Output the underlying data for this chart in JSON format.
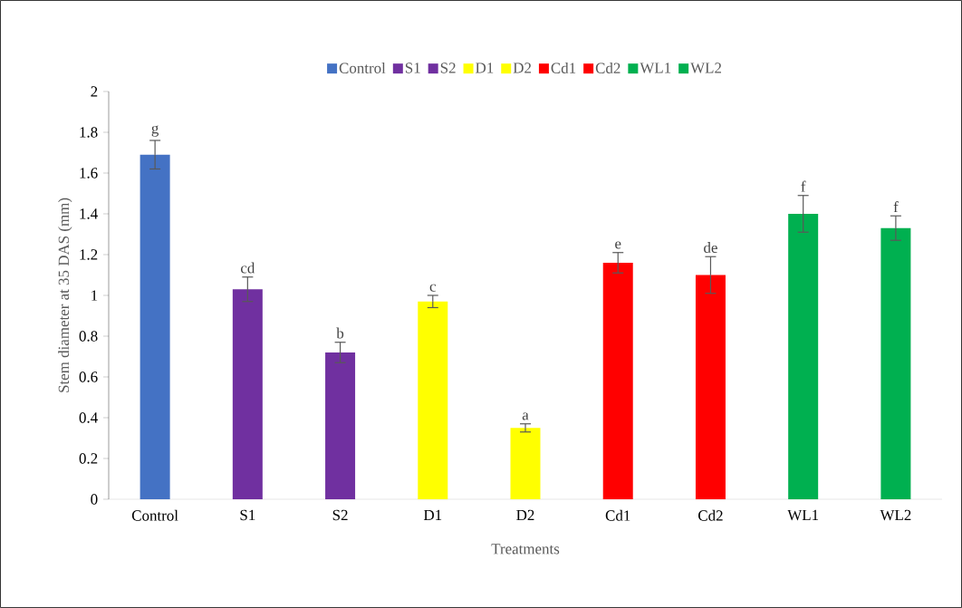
{
  "chart_data": {
    "type": "bar",
    "xlabel": "Treatments",
    "ylabel": "Stem diameter at 35 DAS (mm)",
    "categories": [
      "Control",
      "S1",
      "S2",
      "D1",
      "D2",
      "Cd1",
      "Cd2",
      "WL1",
      "WL2"
    ],
    "series": [
      {
        "name": "Control",
        "color": "#4472c4",
        "values": [
          1.69,
          null,
          null,
          null,
          null,
          null,
          null,
          null,
          null
        ],
        "errors": [
          0.07,
          null,
          null,
          null,
          null,
          null,
          null,
          null,
          null
        ]
      },
      {
        "name": "S1",
        "color": "#7030a0",
        "values": [
          null,
          1.03,
          null,
          null,
          null,
          null,
          null,
          null,
          null
        ],
        "errors": [
          null,
          0.06,
          null,
          null,
          null,
          null,
          null,
          null,
          null
        ]
      },
      {
        "name": "S2",
        "color": "#7030a0",
        "values": [
          null,
          null,
          0.72,
          null,
          null,
          null,
          null,
          null,
          null
        ],
        "errors": [
          null,
          null,
          0.05,
          null,
          null,
          null,
          null,
          null,
          null
        ]
      },
      {
        "name": "D1",
        "color": "#ffff00",
        "values": [
          null,
          null,
          null,
          0.97,
          null,
          null,
          null,
          null,
          null
        ],
        "errors": [
          null,
          null,
          null,
          0.03,
          null,
          null,
          null,
          null,
          null
        ]
      },
      {
        "name": "D2",
        "color": "#ffff00",
        "values": [
          null,
          null,
          null,
          null,
          0.35,
          null,
          null,
          null,
          null
        ],
        "errors": [
          null,
          null,
          null,
          null,
          0.02,
          null,
          null,
          null,
          null
        ]
      },
      {
        "name": "Cd1",
        "color": "#ff0000",
        "values": [
          null,
          null,
          null,
          null,
          null,
          1.16,
          null,
          null,
          null
        ],
        "errors": [
          null,
          null,
          null,
          null,
          null,
          0.05,
          null,
          null,
          null
        ]
      },
      {
        "name": "Cd2",
        "color": "#ff0000",
        "values": [
          null,
          null,
          null,
          null,
          null,
          null,
          1.1,
          null,
          null
        ],
        "errors": [
          null,
          null,
          null,
          null,
          null,
          null,
          0.09,
          null,
          null
        ]
      },
      {
        "name": "WL1",
        "color": "#00b050",
        "values": [
          null,
          null,
          null,
          null,
          null,
          null,
          null,
          1.4,
          null
        ],
        "errors": [
          null,
          null,
          null,
          null,
          null,
          null,
          null,
          0.09,
          null
        ]
      },
      {
        "name": "WL2",
        "color": "#00b050",
        "values": [
          null,
          null,
          null,
          null,
          null,
          null,
          null,
          null,
          1.33
        ],
        "errors": [
          null,
          null,
          null,
          null,
          null,
          null,
          null,
          null,
          0.06
        ]
      }
    ],
    "ylim": [
      0,
      2
    ],
    "yticks": [
      0,
      0.2,
      0.4,
      0.6,
      0.8,
      1,
      1.2,
      1.4,
      1.6,
      1.8,
      2
    ],
    "legend": "top",
    "annotations": [
      {
        "text": "g",
        "x": "Control",
        "y": 1.76
      },
      {
        "text": "cd",
        "x": "S1",
        "y": 1.09
      },
      {
        "text": "b",
        "x": "S2",
        "y": 0.77
      },
      {
        "text": "c",
        "x": "D1",
        "y": 1.0
      },
      {
        "text": "a",
        "x": "D2",
        "y": 0.37
      },
      {
        "text": "e",
        "x": "Cd1",
        "y": 1.21
      },
      {
        "text": "de",
        "x": "Cd2",
        "y": 1.19
      },
      {
        "text": "f",
        "x": "WL1",
        "y": 1.49
      },
      {
        "text": "f",
        "x": "WL2",
        "y": 1.39
      }
    ]
  }
}
